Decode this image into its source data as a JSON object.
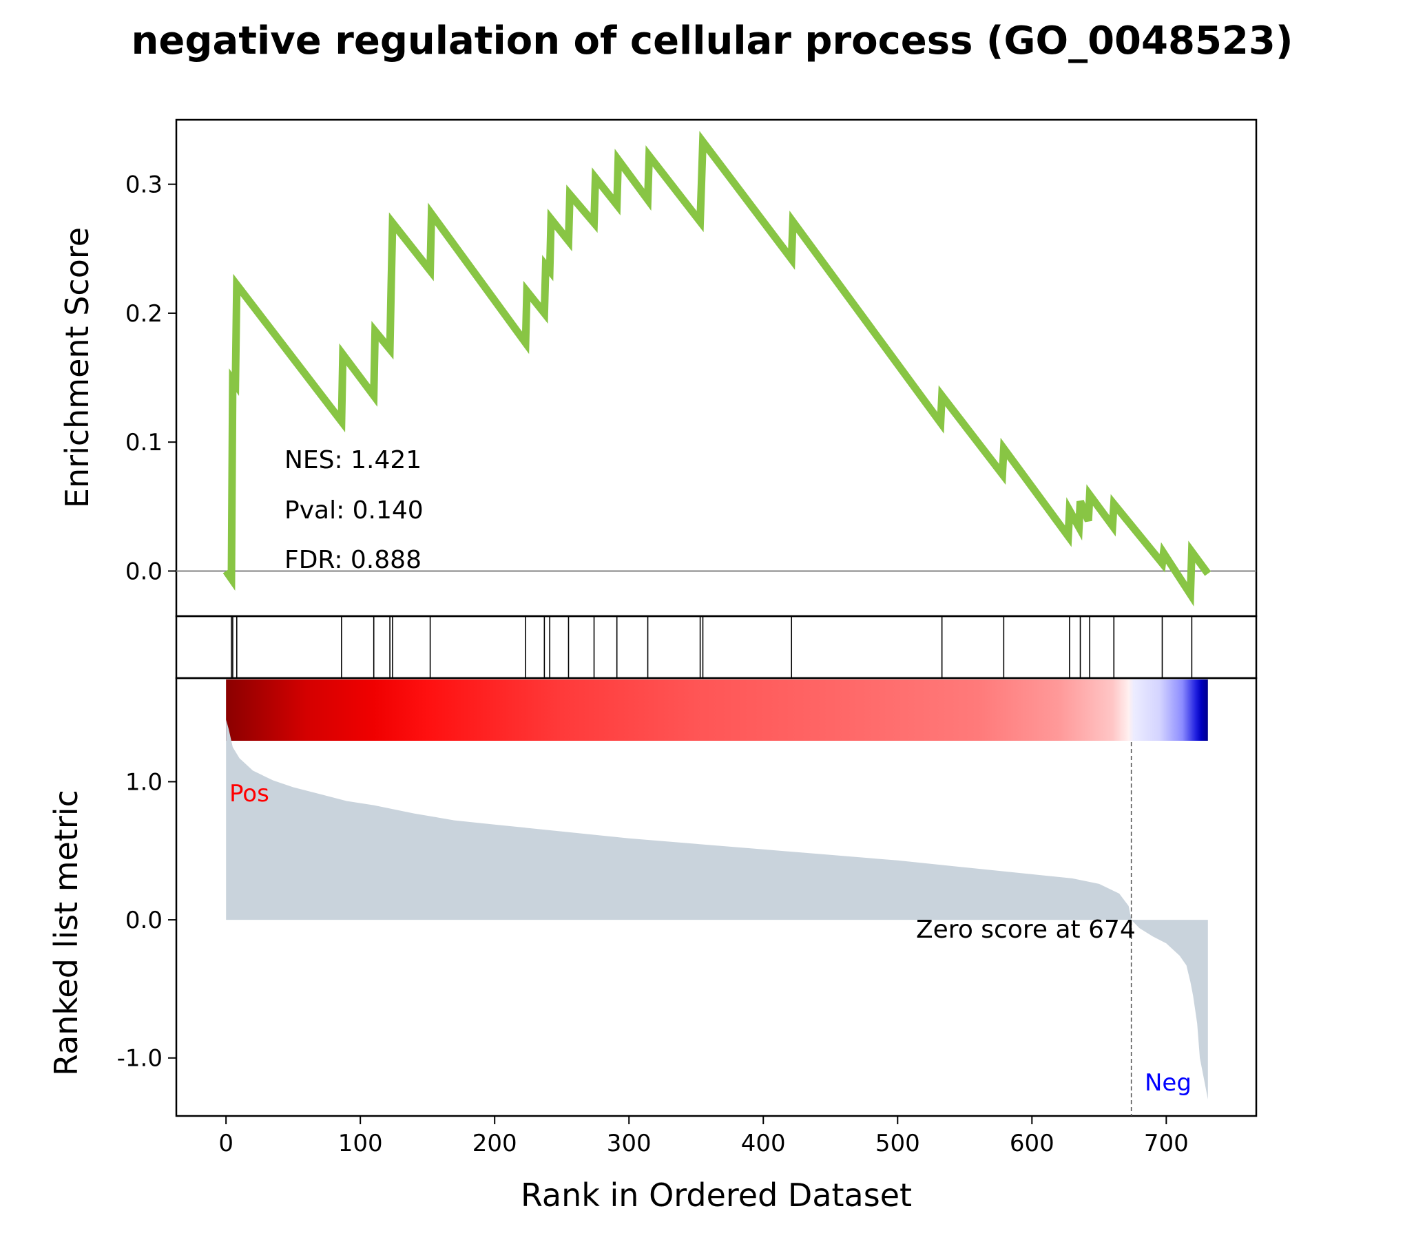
{
  "title": "negative regulation of cellular process (GO_0048523)",
  "chart_data": {
    "type": "line",
    "title": "negative regulation of cellular process (GO_0048523)",
    "xlabel": "Rank in Ordered Dataset",
    "xlim": [
      -37,
      767
    ],
    "x_ticks": [
      0,
      100,
      200,
      300,
      400,
      500,
      600,
      700
    ],
    "es_panel": {
      "ylabel": "Enrichment Score",
      "ylim": [
        -0.035,
        0.35
      ],
      "y_ticks": [
        0.0,
        0.1,
        0.2,
        0.3
      ],
      "y_tick_labels": [
        "0.0",
        "0.1",
        "0.2",
        "0.3"
      ],
      "line_color": "#88c544",
      "zero_line": true,
      "series": [
        {
          "x": [
            0,
            4,
            5,
            7,
            8,
            86,
            87,
            110,
            111,
            122,
            123,
            124,
            152,
            153,
            223,
            224,
            237,
            238,
            241,
            242,
            255,
            256,
            274,
            275,
            291,
            292,
            314,
            315,
            353,
            354,
            355,
            421,
            422,
            532,
            533,
            578,
            579,
            627,
            628,
            635,
            636,
            642,
            643,
            660,
            661,
            697,
            698,
            718,
            719,
            731
          ],
          "y": [
            0.0,
            -0.006,
            0.148,
            0.145,
            0.222,
            0.116,
            0.168,
            0.136,
            0.186,
            0.172,
            0.222,
            0.27,
            0.233,
            0.277,
            0.177,
            0.217,
            0.2,
            0.237,
            0.233,
            0.273,
            0.256,
            0.292,
            0.27,
            0.305,
            0.284,
            0.319,
            0.288,
            0.322,
            0.271,
            0.301,
            0.333,
            0.242,
            0.271,
            0.115,
            0.136,
            0.075,
            0.095,
            0.027,
            0.047,
            0.034,
            0.054,
            0.039,
            0.059,
            0.035,
            0.052,
            0.006,
            0.014,
            -0.018,
            0.015,
            -0.002
          ]
        }
      ],
      "annotations": [
        "NES: 1.421",
        "Pval: 0.140",
        "FDR: 0.888"
      ]
    },
    "hits": [
      4,
      5,
      8,
      86,
      110,
      122,
      124,
      152,
      223,
      237,
      241,
      255,
      274,
      291,
      314,
      353,
      355,
      421,
      533,
      579,
      628,
      636,
      643,
      661,
      697,
      719
    ],
    "colorbar": {
      "gradient_stops": [
        {
          "x": 0,
          "color": "#8b0000"
        },
        {
          "x": 60,
          "color": "#d40000"
        },
        {
          "x": 110,
          "color": "#f00000"
        },
        {
          "x": 150,
          "color": "#ff1010"
        },
        {
          "x": 250,
          "color": "#ff3a3a"
        },
        {
          "x": 350,
          "color": "#ff5555"
        },
        {
          "x": 450,
          "color": "#ff6666"
        },
        {
          "x": 560,
          "color": "#ff7a7a"
        },
        {
          "x": 620,
          "color": "#ff9999"
        },
        {
          "x": 660,
          "color": "#ffc6c6"
        },
        {
          "x": 672,
          "color": "#fff0f0"
        },
        {
          "x": 676,
          "color": "#ececff"
        },
        {
          "x": 695,
          "color": "#d4d4ff"
        },
        {
          "x": 712,
          "color": "#8c8cff"
        },
        {
          "x": 722,
          "color": "#2020e0"
        },
        {
          "x": 726,
          "color": "#0000c0"
        },
        {
          "x": 731,
          "color": "#00008b"
        }
      ]
    },
    "rank_panel": {
      "ylabel": "Ranked list metric",
      "ylim": [
        -1.42,
        1.75
      ],
      "y_ticks": [
        1.0,
        0.0,
        -1.0
      ],
      "y_tick_labels": [
        "1.0",
        "0.0",
        "-1.0"
      ],
      "fill_color": "#c9d3dc",
      "x": [
        0,
        2,
        5,
        10,
        20,
        35,
        50,
        70,
        90,
        110,
        140,
        170,
        200,
        250,
        300,
        350,
        400,
        450,
        500,
        550,
        600,
        630,
        650,
        665,
        672,
        674,
        680,
        690,
        700,
        710,
        715,
        718,
        720,
        723,
        725,
        727,
        731
      ],
      "y": [
        1.45,
        1.38,
        1.25,
        1.17,
        1.08,
        1.01,
        0.96,
        0.91,
        0.86,
        0.83,
        0.77,
        0.72,
        0.69,
        0.64,
        0.59,
        0.55,
        0.51,
        0.47,
        0.43,
        0.38,
        0.33,
        0.3,
        0.26,
        0.19,
        0.1,
        0.0,
        -0.06,
        -0.12,
        -0.17,
        -0.26,
        -0.33,
        -0.45,
        -0.55,
        -0.75,
        -1.0,
        -1.1,
        -1.3
      ],
      "zero_marker_x": 674,
      "zero_label": "Zero score at 674",
      "pos_label": "Pos",
      "neg_label": "Neg",
      "pos_color": "#ff0000",
      "neg_color": "#0000ff"
    }
  }
}
